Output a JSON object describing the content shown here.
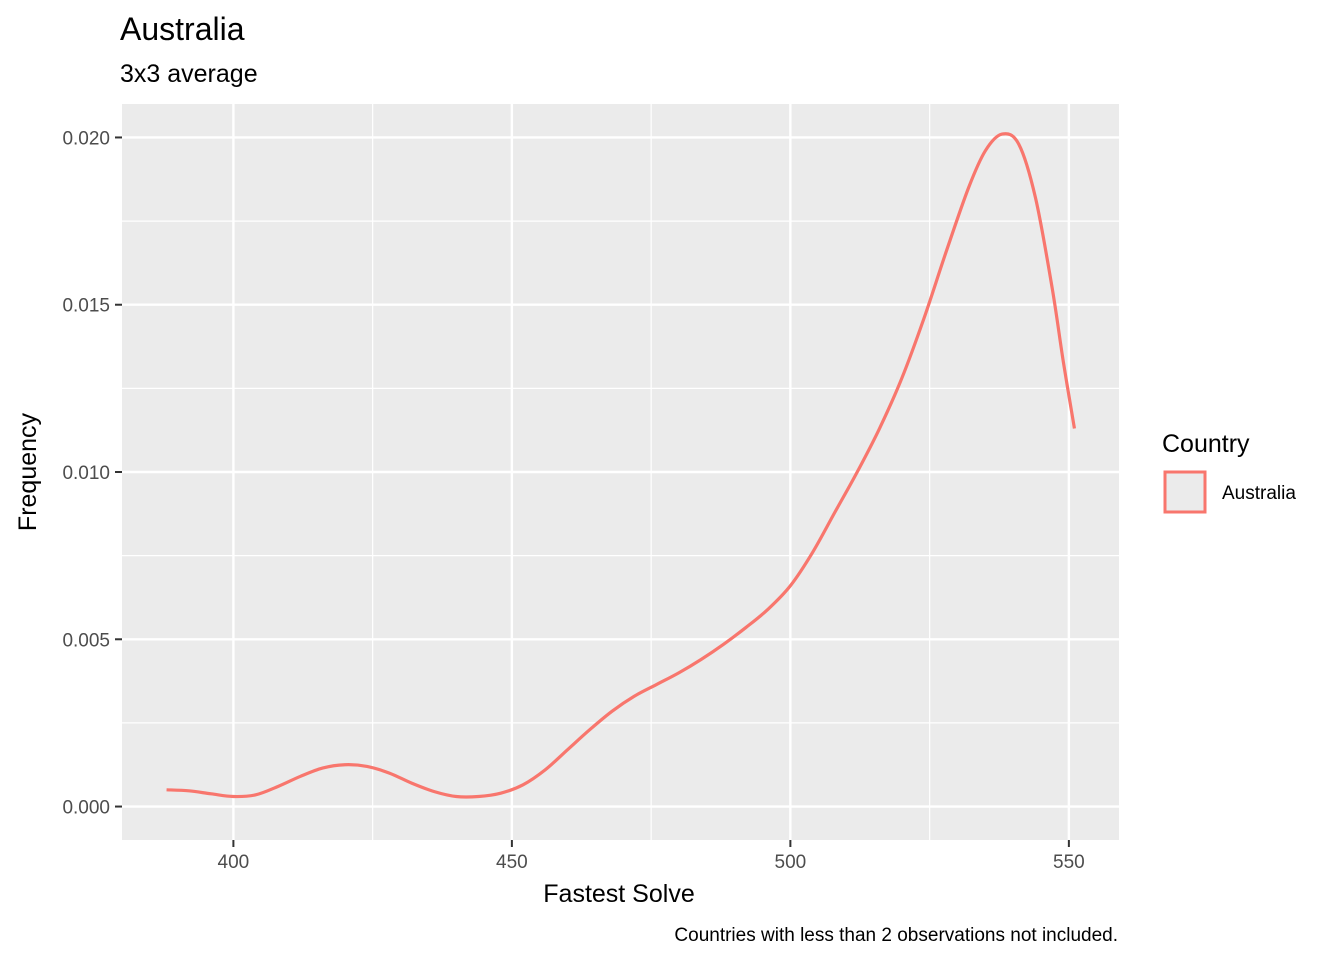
{
  "chart_data": {
    "type": "line",
    "title": "Australia",
    "subtitle": "3x3 average",
    "xlabel": "Fastest Solve",
    "ylabel": "Frequency",
    "caption": "Countries with less than 2 observations not included.",
    "xlim": [
      380,
      559
    ],
    "ylim": [
      -0.001,
      0.021
    ],
    "x_ticks": [
      400,
      450,
      500,
      550
    ],
    "x_tick_labels": [
      "400",
      "450",
      "500",
      "550"
    ],
    "x_minor_ticks": [
      425,
      475,
      525
    ],
    "y_ticks": [
      0.0,
      0.005,
      0.01,
      0.015,
      0.02
    ],
    "y_tick_labels": [
      "0.000",
      "0.005",
      "0.010",
      "0.015",
      "0.020"
    ],
    "y_minor_ticks": [
      0.0025,
      0.0075,
      0.0125,
      0.0175
    ],
    "grid": true,
    "legend": {
      "title": "Country",
      "position": "right"
    },
    "series": [
      {
        "name": "Australia",
        "color": "#f8766d",
        "x": [
          388,
          392,
          396,
          400,
          404,
          408,
          412,
          416,
          420,
          424,
          428,
          432,
          436,
          440,
          444,
          448,
          452,
          456,
          460,
          464,
          468,
          472,
          476,
          480,
          484,
          488,
          492,
          496,
          500,
          504,
          508,
          512,
          516,
          520,
          524,
          528,
          532,
          535,
          538,
          541,
          544,
          547,
          549,
          551
        ],
        "values": [
          0.0005,
          0.00047,
          0.00038,
          0.0003,
          0.00035,
          0.0006,
          0.0009,
          0.00115,
          0.00125,
          0.0012,
          0.001,
          0.0007,
          0.00045,
          0.0003,
          0.0003,
          0.0004,
          0.00065,
          0.0011,
          0.0017,
          0.0023,
          0.00285,
          0.0033,
          0.00365,
          0.004,
          0.0044,
          0.00485,
          0.00535,
          0.0059,
          0.0066,
          0.0076,
          0.0088,
          0.01,
          0.0113,
          0.0128,
          0.0146,
          0.0166,
          0.0185,
          0.0196,
          0.0201,
          0.0198,
          0.0182,
          0.0155,
          0.0133,
          0.0113
        ]
      }
    ]
  }
}
